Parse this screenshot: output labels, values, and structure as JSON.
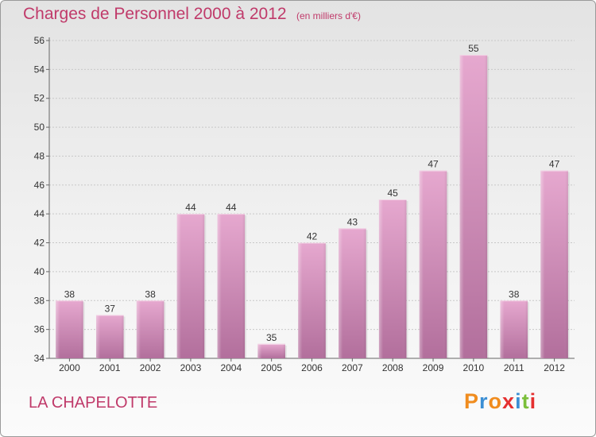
{
  "header": {
    "title": "Charges de Personnel 2000 à 2012",
    "subtitle": "(en milliers d'€)"
  },
  "footer": {
    "commune": "LA CHAPELOTTE",
    "logo_text": "Proxiti",
    "logo_colors": [
      "#f08c1e",
      "#3c8fd4",
      "#f08c1e",
      "#e53030",
      "#3c8fd4",
      "#7bbf3a",
      "#e53030"
    ]
  },
  "colors": {
    "bar_top": "#e6a8cf",
    "bar_bottom": "#b26f9c",
    "title": "#c03a6a"
  },
  "chart_data": {
    "type": "bar",
    "title": "Charges de Personnel 2000 à 2012",
    "subtitle": "(en milliers d'€)",
    "categories": [
      "2000",
      "2001",
      "2002",
      "2003",
      "2004",
      "2005",
      "2006",
      "2007",
      "2008",
      "2009",
      "2010",
      "2011",
      "2012"
    ],
    "values": [
      38,
      37,
      38,
      44,
      44,
      35,
      42,
      43,
      45,
      47,
      55,
      38,
      47
    ],
    "ylim": [
      34,
      56
    ],
    "yticks": [
      34,
      36,
      38,
      40,
      42,
      44,
      46,
      48,
      50,
      52,
      54,
      56
    ],
    "grid": true,
    "xlabel": "",
    "ylabel": ""
  }
}
